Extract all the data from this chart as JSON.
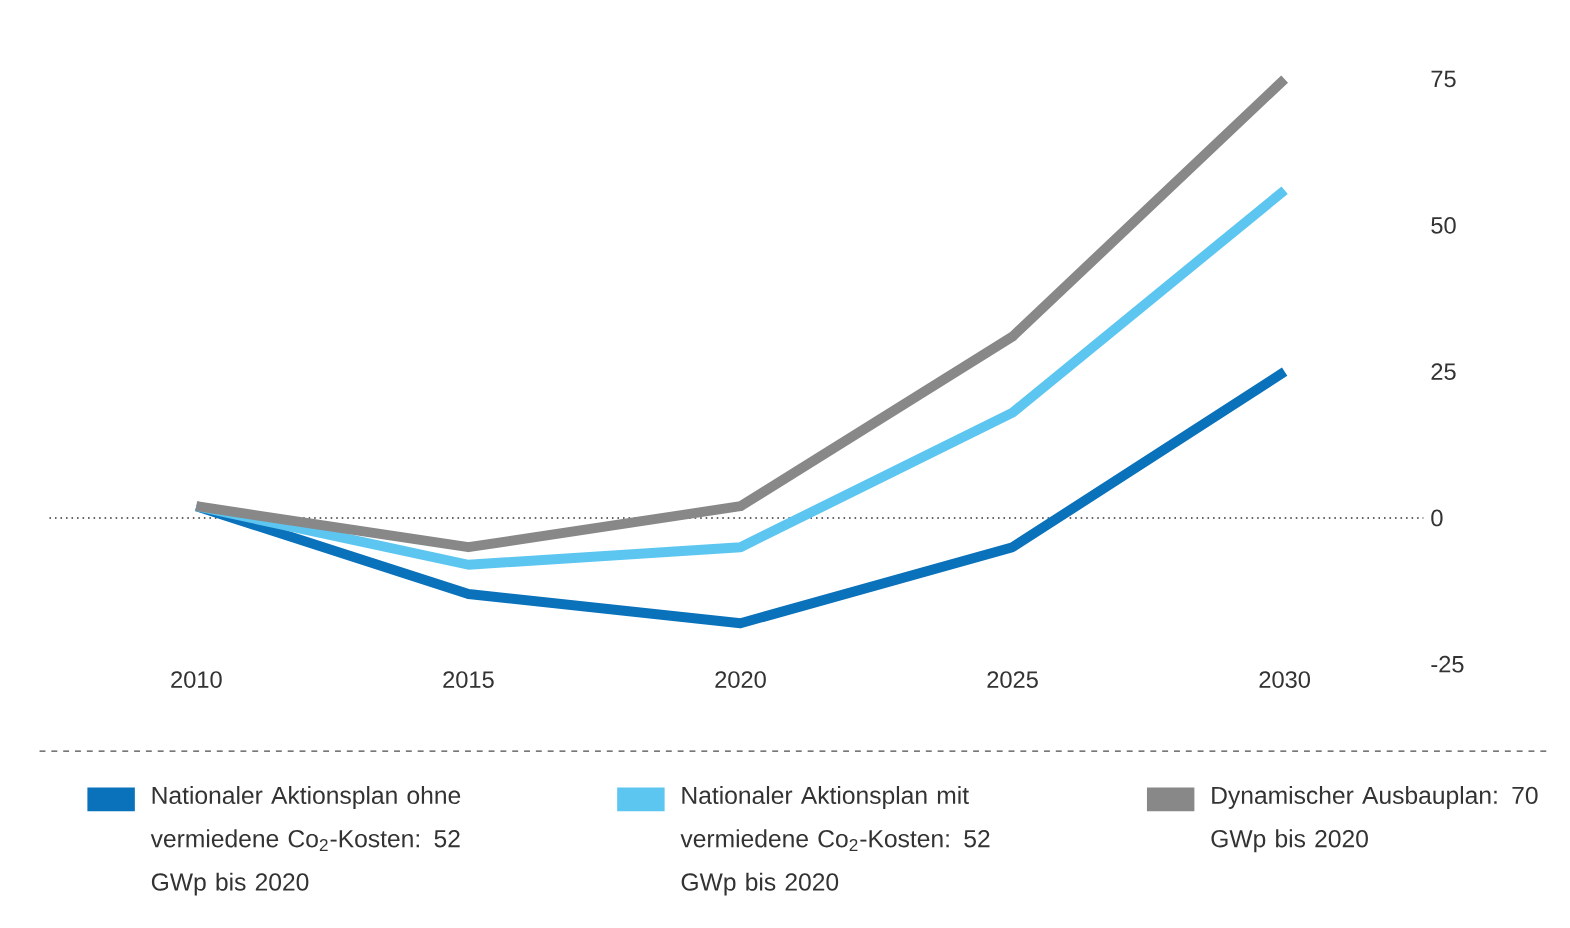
{
  "chart_data": {
    "type": "line",
    "categories": [
      "2010",
      "2015",
      "2020",
      "2025",
      "2030"
    ],
    "series": [
      {
        "name": "Nationaler Aktionsplan ohne vermiedene Co$_{2}$-Kosten: 52 GWp bis 2020",
        "color": "#0a72bb",
        "values": [
          2,
          -13,
          -18,
          -5,
          25
        ]
      },
      {
        "name": "Nationaler Aktionsplan mit vermiedene Co$_{2}$-Kosten: 52 GWp bis 2020",
        "color": "#5cc6f0",
        "values": [
          2,
          -8,
          -5,
          18,
          56
        ]
      },
      {
        "name": "Dynamischer Ausbauplan: 70 GWp bis 2020",
        "color": "#888888",
        "values": [
          2,
          -5,
          2,
          31,
          75
        ]
      }
    ],
    "ylim": [
      -25,
      75
    ],
    "yticks": [
      -25,
      0,
      25,
      50,
      75
    ],
    "ref_lines": [
      {
        "axis": "y",
        "value": 0,
        "line_style": "dotted",
        "color": "#333333"
      }
    ],
    "legend": "bottom"
  }
}
